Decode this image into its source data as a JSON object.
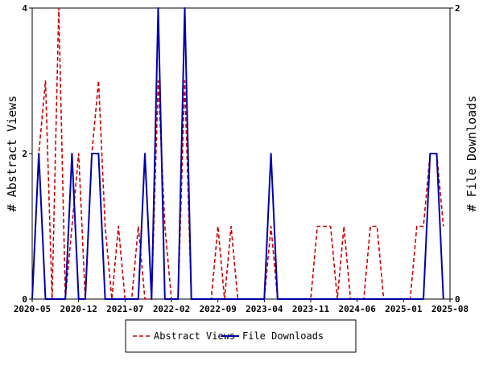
{
  "chart_data": {
    "type": "line",
    "x_tick_labels": [
      "2020-05",
      "2020-12",
      "2021-07",
      "2022-02",
      "2022-09",
      "2023-04",
      "2023-11",
      "2024-06",
      "2025-01",
      "2025-08"
    ],
    "y_left": {
      "label": "# Abstract Views",
      "ticks": [
        "0",
        "2",
        "4"
      ],
      "lim": [
        0,
        4
      ]
    },
    "y_right": {
      "label": "# File Downloads",
      "ticks": [
        "0",
        "2"
      ],
      "lim": [
        0,
        2
      ]
    },
    "legend_position": "bottom-center",
    "grid": false,
    "series": [
      {
        "name": "Abstract Views",
        "axis": "left",
        "color": "#cc0000",
        "style": "dashed",
        "points": [
          [
            "2020-05",
            0
          ],
          [
            "2020-06",
            2
          ],
          [
            "2020-07",
            3
          ],
          [
            "2020-08",
            0
          ],
          [
            "2020-09",
            4
          ],
          [
            "2020-10",
            0
          ],
          [
            "2020-11",
            1
          ],
          [
            "2020-12",
            2
          ],
          [
            "2021-01",
            0
          ],
          [
            "2021-02",
            2
          ],
          [
            "2021-03",
            3
          ],
          [
            "2021-04",
            1
          ],
          [
            "2021-05",
            0
          ],
          [
            "2021-06",
            1
          ],
          [
            "2021-07",
            0
          ],
          [
            "2021-08",
            0
          ],
          [
            "2021-09",
            1
          ],
          [
            "2021-10",
            0
          ],
          [
            "2021-11",
            0
          ],
          [
            "2021-12",
            3
          ],
          [
            "2022-01",
            1
          ],
          [
            "2022-02",
            0
          ],
          [
            "2022-03",
            0
          ],
          [
            "2022-04",
            3
          ],
          [
            "2022-05",
            0
          ],
          [
            "2022-06",
            0
          ],
          [
            "2022-07",
            0
          ],
          [
            "2022-08",
            0
          ],
          [
            "2022-09",
            1
          ],
          [
            "2022-10",
            0
          ],
          [
            "2022-11",
            1
          ],
          [
            "2022-12",
            0
          ],
          [
            "2023-01",
            0
          ],
          [
            "2023-02",
            0
          ],
          [
            "2023-03",
            0
          ],
          [
            "2023-04",
            0
          ],
          [
            "2023-05",
            1
          ],
          [
            "2023-06",
            0
          ],
          [
            "2023-07",
            0
          ],
          [
            "2023-08",
            0
          ],
          [
            "2023-09",
            0
          ],
          [
            "2023-10",
            0
          ],
          [
            "2023-11",
            0
          ],
          [
            "2023-12",
            1
          ],
          [
            "2024-01",
            1
          ],
          [
            "2024-02",
            1
          ],
          [
            "2024-03",
            0
          ],
          [
            "2024-04",
            1
          ],
          [
            "2024-05",
            0
          ],
          [
            "2024-06",
            0
          ],
          [
            "2024-07",
            0
          ],
          [
            "2024-08",
            1
          ],
          [
            "2024-09",
            1
          ],
          [
            "2024-10",
            0
          ],
          [
            "2024-11",
            0
          ],
          [
            "2024-12",
            0
          ],
          [
            "2025-01",
            0
          ],
          [
            "2025-02",
            0
          ],
          [
            "2025-03",
            1
          ],
          [
            "2025-04",
            1
          ],
          [
            "2025-05",
            2
          ],
          [
            "2025-06",
            2
          ],
          [
            "2025-07",
            1
          ]
        ]
      },
      {
        "name": "File Downloads",
        "axis": "right",
        "color": "#0000aa",
        "style": "solid",
        "points": [
          [
            "2020-05",
            0
          ],
          [
            "2020-06",
            1
          ],
          [
            "2020-07",
            0
          ],
          [
            "2020-08",
            0
          ],
          [
            "2020-09",
            0
          ],
          [
            "2020-10",
            0
          ],
          [
            "2020-11",
            1
          ],
          [
            "2020-12",
            0
          ],
          [
            "2021-01",
            0
          ],
          [
            "2021-02",
            1
          ],
          [
            "2021-03",
            1
          ],
          [
            "2021-04",
            0
          ],
          [
            "2021-05",
            0
          ],
          [
            "2021-06",
            0
          ],
          [
            "2021-07",
            0
          ],
          [
            "2021-08",
            0
          ],
          [
            "2021-09",
            0
          ],
          [
            "2021-10",
            1
          ],
          [
            "2021-11",
            0
          ],
          [
            "2021-12",
            2
          ],
          [
            "2022-01",
            0
          ],
          [
            "2022-02",
            0
          ],
          [
            "2022-03",
            0
          ],
          [
            "2022-04",
            2
          ],
          [
            "2022-05",
            0
          ],
          [
            "2022-06",
            0
          ],
          [
            "2022-07",
            0
          ],
          [
            "2022-08",
            0
          ],
          [
            "2022-09",
            0
          ],
          [
            "2022-10",
            0
          ],
          [
            "2022-11",
            0
          ],
          [
            "2022-12",
            0
          ],
          [
            "2023-01",
            0
          ],
          [
            "2023-02",
            0
          ],
          [
            "2023-03",
            0
          ],
          [
            "2023-04",
            0
          ],
          [
            "2023-05",
            1
          ],
          [
            "2023-06",
            0
          ],
          [
            "2023-07",
            0
          ],
          [
            "2023-08",
            0
          ],
          [
            "2023-09",
            0
          ],
          [
            "2023-10",
            0
          ],
          [
            "2023-11",
            0
          ],
          [
            "2023-12",
            0
          ],
          [
            "2024-01",
            0
          ],
          [
            "2024-02",
            0
          ],
          [
            "2024-03",
            0
          ],
          [
            "2024-04",
            0
          ],
          [
            "2024-05",
            0
          ],
          [
            "2024-06",
            0
          ],
          [
            "2024-07",
            0
          ],
          [
            "2024-08",
            0
          ],
          [
            "2024-09",
            0
          ],
          [
            "2024-10",
            0
          ],
          [
            "2024-11",
            0
          ],
          [
            "2024-12",
            0
          ],
          [
            "2025-01",
            0
          ],
          [
            "2025-02",
            0
          ],
          [
            "2025-03",
            0
          ],
          [
            "2025-04",
            0
          ],
          [
            "2025-05",
            1
          ],
          [
            "2025-06",
            1
          ],
          [
            "2025-07",
            0
          ]
        ]
      }
    ]
  }
}
